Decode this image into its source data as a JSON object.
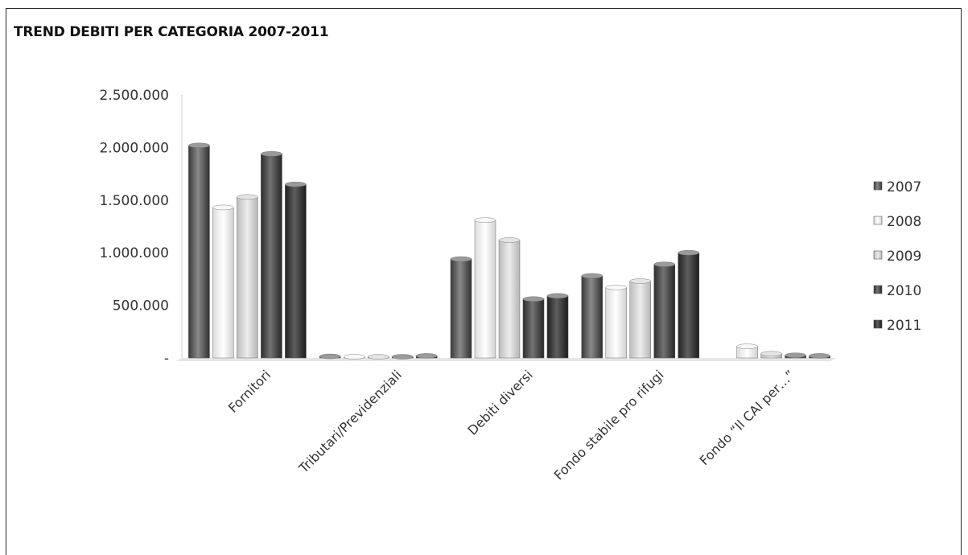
{
  "chart_data": {
    "type": "bar",
    "title": "TREND DEBITI PER CATEGORIA 2007-2011",
    "xlabel": "",
    "ylabel": "",
    "ylim": [
      0,
      2500000
    ],
    "yticks": [
      0,
      500000,
      1000000,
      1500000,
      2000000,
      2500000
    ],
    "ytick_labels": [
      "-",
      "500.000",
      "1.000.000",
      "1.500.000",
      "2.000.000",
      "2.500.000"
    ],
    "categories": [
      "Fornitori",
      "Tributari/Previdenziali",
      "Debiti diversi",
      "Fondo stabile pro rifugi",
      "Fondo “Il CAI per…”"
    ],
    "series": [
      {
        "name": "2007",
        "color": "#5a5a5a",
        "values": [
          2020000,
          15000,
          940000,
          780000,
          0
        ]
      },
      {
        "name": "2008",
        "color": "#efefef",
        "values": [
          1430000,
          5000,
          1310000,
          670000,
          110000
        ]
      },
      {
        "name": "2009",
        "color": "#d6d6d6",
        "values": [
          1530000,
          5000,
          1120000,
          730000,
          40000
        ]
      },
      {
        "name": "2010",
        "color": "#4a4a4a",
        "values": [
          1940000,
          5000,
          560000,
          890000,
          25000
        ]
      },
      {
        "name": "2011",
        "color": "#3c3c3c",
        "values": [
          1650000,
          20000,
          590000,
          1000000,
          20000
        ]
      }
    ],
    "legend_position": "right",
    "grid": false
  }
}
